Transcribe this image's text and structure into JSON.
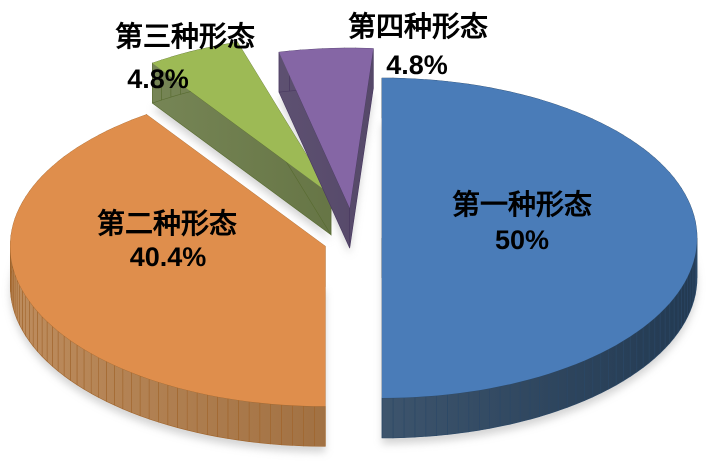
{
  "chart_data": {
    "type": "pie",
    "style": "3d-exploded",
    "title": "",
    "legend": "none",
    "background": "#ffffff",
    "label_color": "#000000",
    "categories": [
      "第一种形态",
      "第二种形态",
      "第三种形态",
      "第四种形态"
    ],
    "values": [
      50,
      40.4,
      4.8,
      4.8
    ],
    "value_labels": [
      "50%",
      "40.4%",
      "4.8%",
      "4.8%"
    ],
    "colors": [
      "#4a7cb8",
      "#df8e4c",
      "#9dba55",
      "#8566a5"
    ],
    "side_colors": [
      "#2d4c6c",
      "#a96a2e",
      "#5d7133",
      "#4c3b65"
    ],
    "label_placement": [
      "inside",
      "inside",
      "outside",
      "outside"
    ]
  }
}
